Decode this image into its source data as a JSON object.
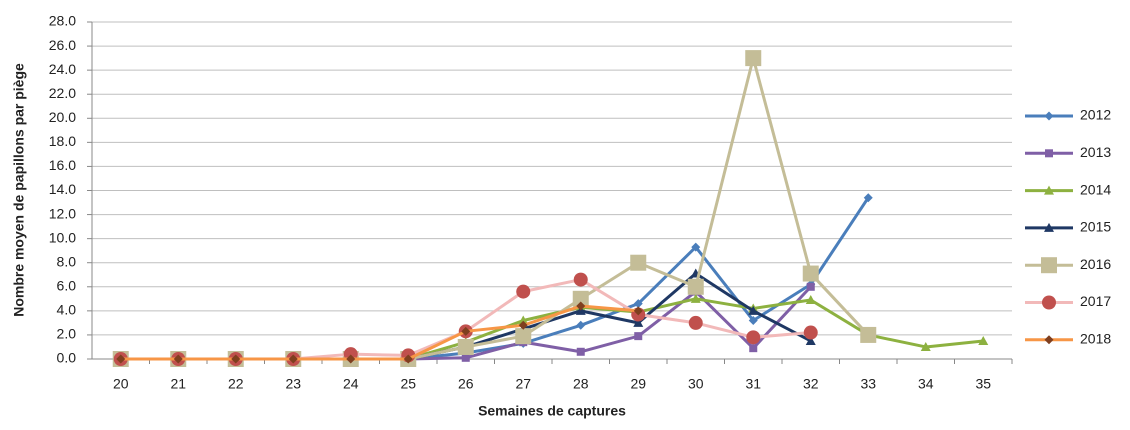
{
  "chart_data": {
    "type": "line",
    "y_label": "Nombre moyen de papillons par piège",
    "x_label": "Semaines de captures",
    "categories": [
      "20",
      "21",
      "22",
      "23",
      "24",
      "25",
      "26",
      "27",
      "28",
      "29",
      "30",
      "31",
      "32",
      "33",
      "34",
      "35"
    ],
    "ylim": [
      0,
      28
    ],
    "yticks": [
      {
        "value": 0,
        "label": "0.0"
      },
      {
        "value": 2,
        "label": "2.0"
      },
      {
        "value": 4,
        "label": "4.0"
      },
      {
        "value": 6,
        "label": "6.0"
      },
      {
        "value": 8,
        "label": "8.0"
      },
      {
        "value": 10,
        "label": "10.0"
      },
      {
        "value": 12,
        "label": "12.0"
      },
      {
        "value": 14,
        "label": "14.0"
      },
      {
        "value": 16,
        "label": "16.0"
      },
      {
        "value": 18,
        "label": "18.0"
      },
      {
        "value": 20,
        "label": "20.0"
      },
      {
        "value": 22,
        "label": "22.0"
      },
      {
        "value": 24,
        "label": "24.0"
      },
      {
        "value": 26,
        "label": "26.0"
      },
      {
        "value": 28,
        "label": "28.0"
      }
    ],
    "grid": true,
    "legend": "right",
    "series": [
      {
        "name": "2012",
        "color": "#4a7ebb",
        "marker": "diamond",
        "marker_color": "#4a7ebb",
        "values": [
          0,
          0,
          0,
          0,
          0,
          0,
          0.5,
          1.3,
          2.8,
          4.6,
          9.3,
          3.2,
          6.2,
          13.4,
          null,
          null
        ]
      },
      {
        "name": "2013",
        "color": "#7f5fa6",
        "marker": "square",
        "marker_color": "#7f5fa6",
        "values": [
          0,
          0,
          0,
          0,
          0,
          0,
          0.1,
          1.4,
          0.6,
          1.9,
          5.6,
          0.9,
          6.0,
          null,
          null,
          null
        ]
      },
      {
        "name": "2014",
        "color": "#8db140",
        "marker": "triangle",
        "marker_color": "#8db140",
        "values": [
          0,
          0,
          0,
          0,
          0,
          0,
          1.4,
          3.2,
          4.3,
          3.9,
          5.0,
          4.2,
          4.9,
          2.0,
          1.0,
          1.5
        ]
      },
      {
        "name": "2015",
        "color": "#1f3864",
        "marker": "triangle",
        "marker_color": "#1f3864",
        "values": [
          0,
          0,
          0,
          0,
          0,
          0,
          1.0,
          2.5,
          4.0,
          3.0,
          7.1,
          4.0,
          1.5,
          null,
          null,
          null
        ]
      },
      {
        "name": "2016",
        "color": "#c4bd97",
        "marker": "big-square",
        "marker_color": "#c4bd97",
        "values": [
          0,
          0,
          0,
          0,
          0,
          0,
          1.0,
          1.9,
          5.0,
          8.0,
          6.0,
          25.0,
          7.1,
          2.0,
          null,
          null
        ]
      },
      {
        "name": "2017",
        "color": "#f2b9b9",
        "marker": "circle",
        "marker_color": "#c0504d",
        "values": [
          0,
          0,
          0,
          0,
          0.4,
          0.3,
          2.3,
          5.6,
          6.6,
          3.7,
          3.0,
          1.8,
          2.2,
          null,
          null,
          null
        ]
      },
      {
        "name": "2018",
        "color": "#f79646",
        "marker": "diamond",
        "marker_color": "#7f3f1f",
        "values": [
          0,
          0,
          0,
          0,
          0,
          0,
          2.3,
          2.8,
          4.4,
          4.0,
          null,
          null,
          null,
          null,
          null,
          null
        ]
      }
    ]
  }
}
